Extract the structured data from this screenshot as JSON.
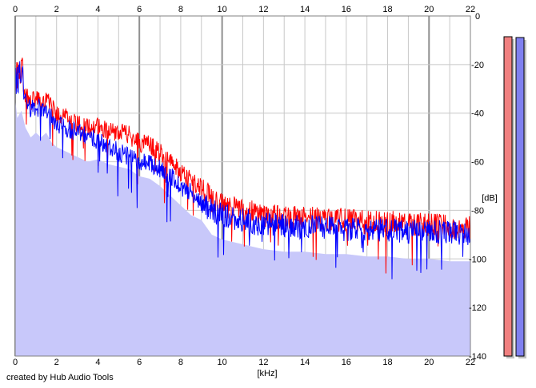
{
  "footer": {
    "credit": "created by Hub Audio Tools"
  },
  "chart_data": {
    "type": "line",
    "xlabel": "[kHz]",
    "ylabel": "[dB]",
    "xlim": [
      0,
      22
    ],
    "ylim": [
      -140,
      0
    ],
    "x_ticks": [
      "0",
      "2",
      "4",
      "6",
      "8",
      "10",
      "12",
      "14",
      "16",
      "18",
      "20",
      "22"
    ],
    "y_ticks": [
      "0",
      "-20",
      "-40",
      "-60",
      "-80",
      "-100",
      "-120",
      "-140"
    ],
    "major_x_gridlines_khz": [
      0,
      6,
      10,
      20
    ],
    "grid": true,
    "area_fill_color": "#c8c8fa",
    "x_khz": [
      0.1,
      0.3,
      0.5,
      0.75,
      1.0,
      1.25,
      1.5,
      1.75,
      2.0,
      2.5,
      3.0,
      3.5,
      4.0,
      4.5,
      5.0,
      5.5,
      6.0,
      6.5,
      7.0,
      7.5,
      8.0,
      8.5,
      9.0,
      9.5,
      10.0,
      10.5,
      11.0,
      11.5,
      12.0,
      13.0,
      14.0,
      15.0,
      16.0,
      17.0,
      18.0,
      19.0,
      20.0,
      21.0,
      22.0
    ],
    "series": [
      {
        "color": "#ff0000",
        "values_db": [
          -28,
          -25,
          -32,
          -36,
          -34,
          -36,
          -34,
          -38,
          -40,
          -42,
          -44,
          -46,
          -45,
          -47,
          -48,
          -49,
          -52,
          -53,
          -56,
          -60,
          -64,
          -68,
          -70,
          -76,
          -78,
          -79,
          -80,
          -81,
          -82,
          -83,
          -83,
          -84,
          -84,
          -85,
          -85,
          -86,
          -86,
          -87,
          -87
        ]
      },
      {
        "color": "#0000ff",
        "values_db": [
          -30,
          -27,
          -34,
          -38,
          -37,
          -39,
          -38,
          -41,
          -44,
          -46,
          -48,
          -50,
          -51,
          -53,
          -56,
          -58,
          -60,
          -61,
          -63,
          -66,
          -70,
          -73,
          -77,
          -80,
          -82,
          -83,
          -84,
          -85,
          -86,
          -86,
          -87,
          -87,
          -88,
          -88,
          -88,
          -89,
          -89,
          -89,
          -90
        ]
      }
    ],
    "meters": [
      {
        "color": "#f08080",
        "level_db": -8
      },
      {
        "color": "#8080f0",
        "level_db": -10
      }
    ]
  }
}
